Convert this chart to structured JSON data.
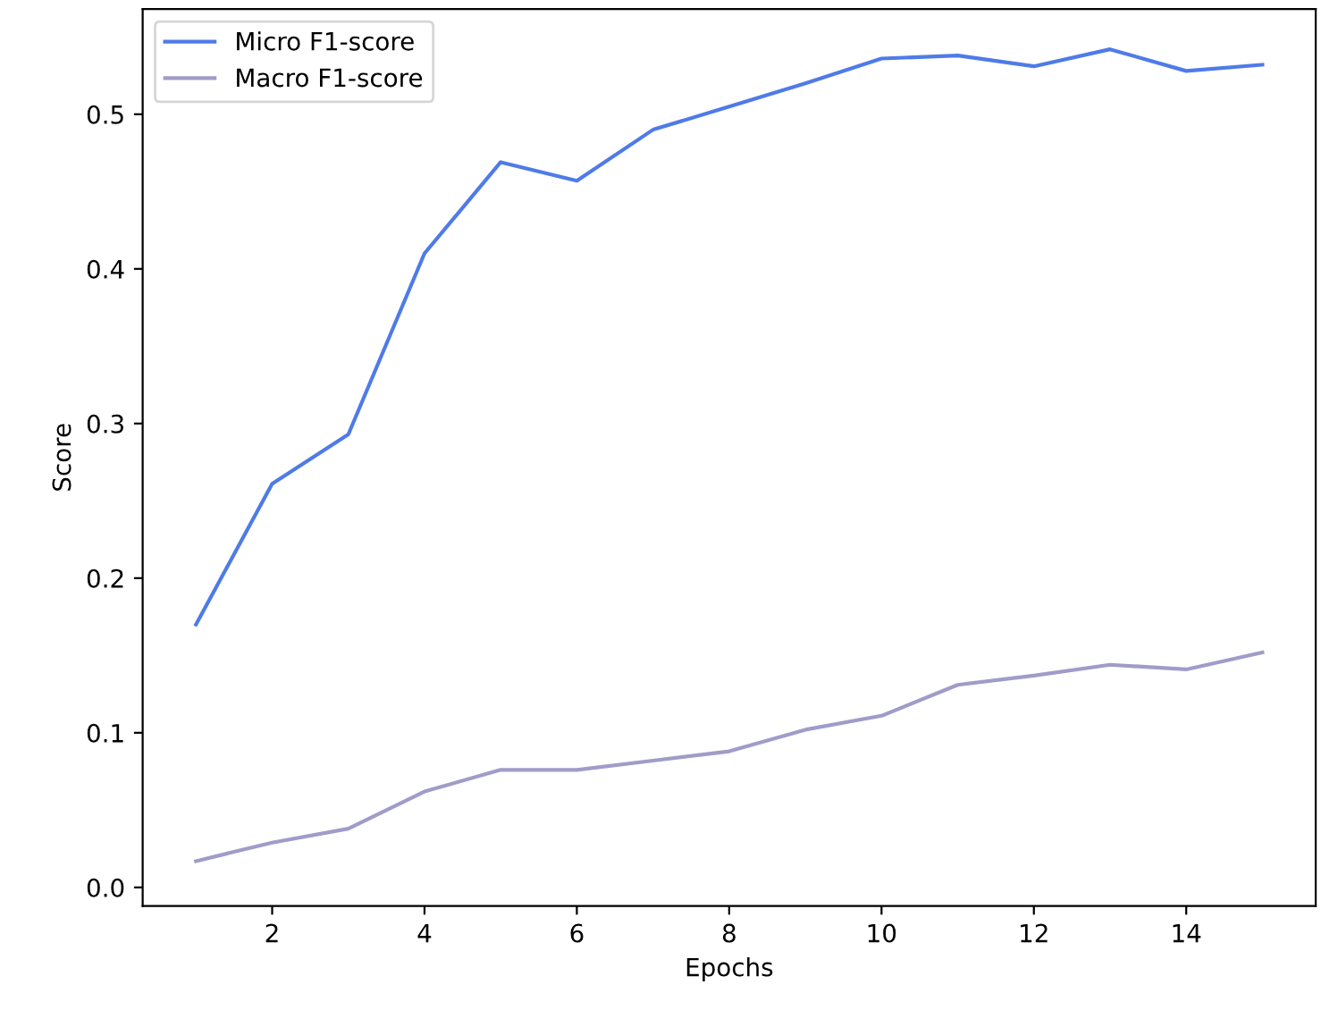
{
  "chart_data": {
    "type": "line",
    "xlabel": "Epochs",
    "ylabel": "Score",
    "x": [
      1,
      2,
      3,
      4,
      5,
      6,
      7,
      8,
      9,
      10,
      11,
      12,
      13,
      14,
      15
    ],
    "series": [
      {
        "name": "Micro F1-score",
        "color": "#4f7be8",
        "values": [
          0.17,
          0.261,
          0.293,
          0.41,
          0.469,
          0.457,
          0.49,
          0.505,
          0.52,
          0.536,
          0.538,
          0.531,
          0.542,
          0.528,
          0.532
        ]
      },
      {
        "name": "Macro F1-score",
        "color": "#a09cc9",
        "values": [
          0.017,
          0.029,
          0.038,
          0.062,
          0.076,
          0.076,
          0.082,
          0.088,
          0.102,
          0.111,
          0.131,
          0.137,
          0.144,
          0.141,
          0.152
        ]
      }
    ],
    "xlim": [
      0.3,
      15.7
    ],
    "xticks": [
      2,
      4,
      6,
      8,
      10,
      12,
      14
    ],
    "ylim": [
      -0.012,
      0.568
    ],
    "yticks": [
      {
        "value": 0,
        "label": "0.0"
      },
      0.1,
      0.2,
      0.3,
      0.4,
      0.5
    ],
    "legend": "top left",
    "grid": false
  }
}
